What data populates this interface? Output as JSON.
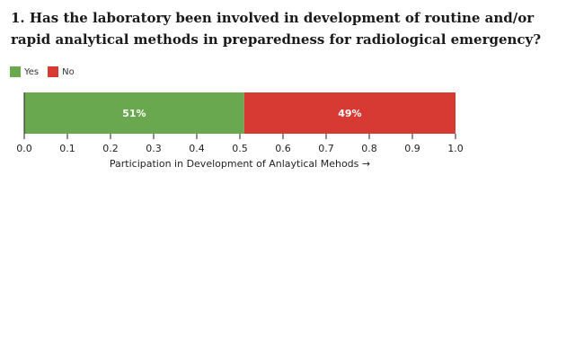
{
  "chart_data": {
    "type": "bar",
    "orientation": "horizontal",
    "stacked": true,
    "title": "1. Has the laboratory been involved in development of routine and/or rapid analytical methods in preparedness for radiological emergency?",
    "xlabel": "Participation in Development of Anlaytical Mehods →",
    "ylabel": "",
    "xlim": [
      0,
      1
    ],
    "x_ticks": [
      "0.0",
      "0.1",
      "0.2",
      "0.3",
      "0.4",
      "0.5",
      "0.6",
      "0.7",
      "0.8",
      "0.9",
      "1.0"
    ],
    "legend_position": "top-left",
    "grid": false,
    "series": [
      {
        "name": "Yes",
        "value": 0.51,
        "label": "51%",
        "color": "#6aa84f"
      },
      {
        "name": "No",
        "value": 0.49,
        "label": "49%",
        "color": "#d63a32"
      }
    ]
  }
}
